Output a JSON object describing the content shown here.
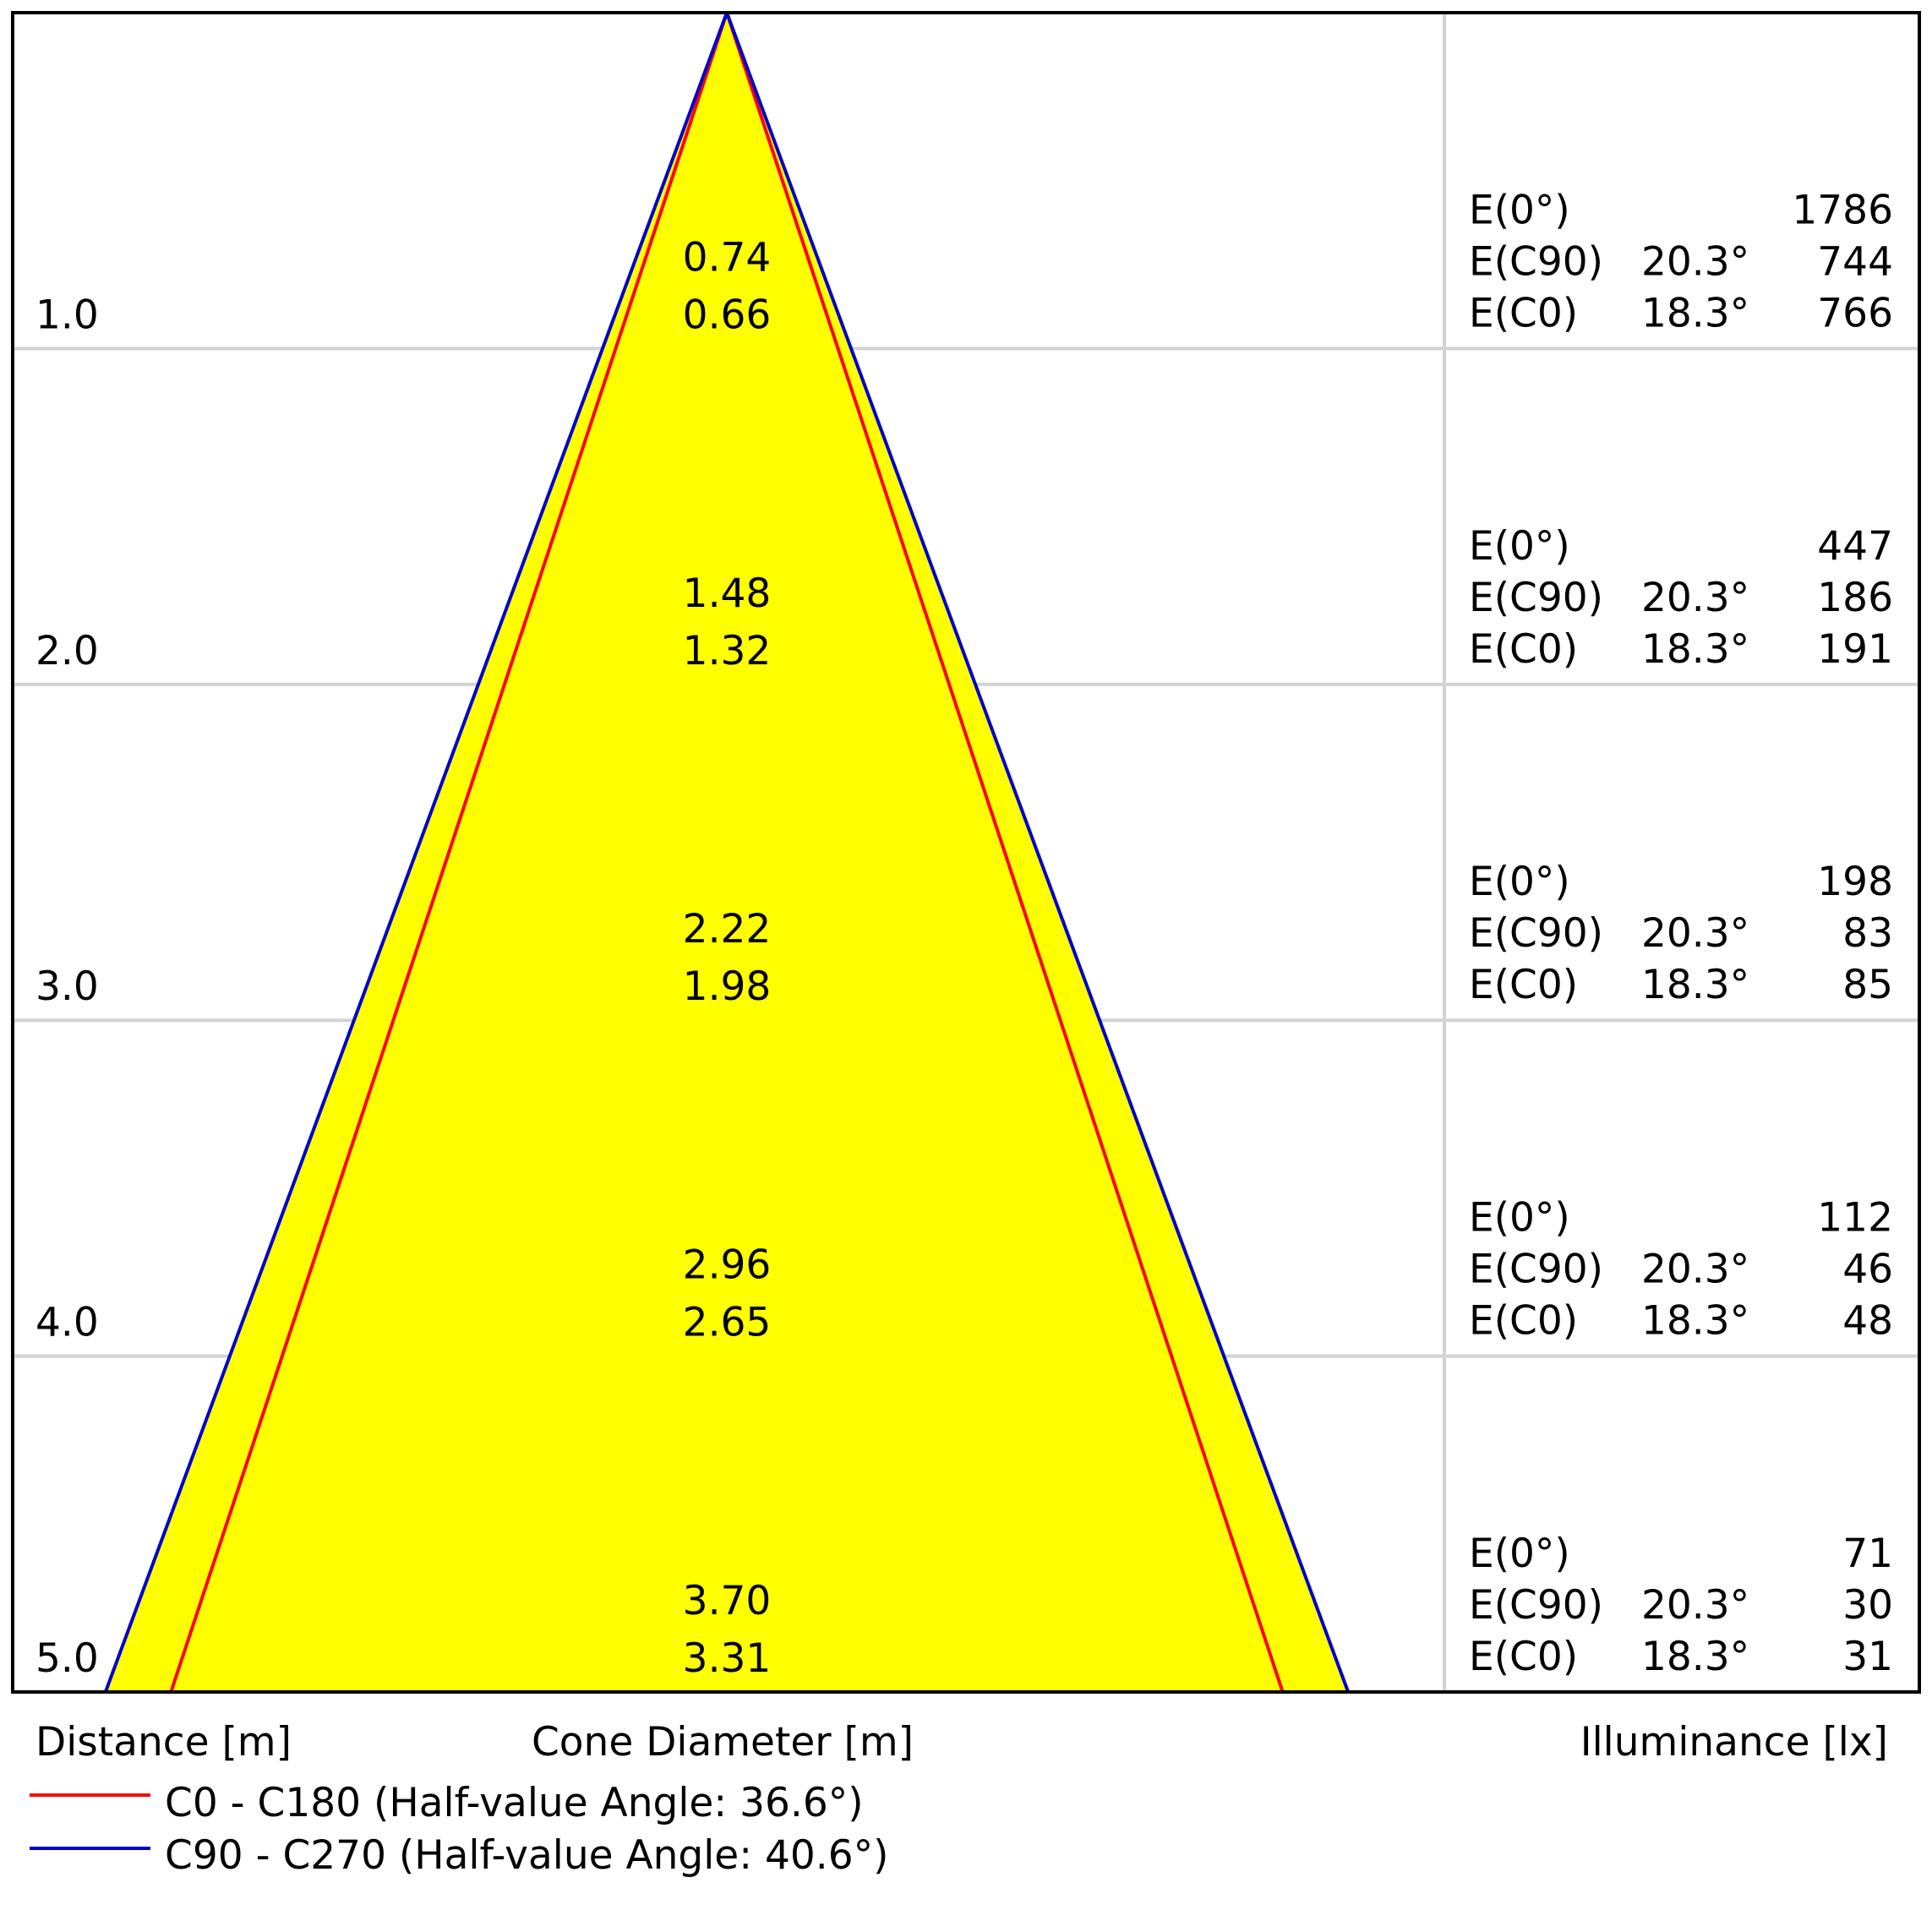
{
  "chart_data": {
    "type": "cone-diagram",
    "xlabel": "Distance [m]",
    "center_label": "Cone Diameter [m]",
    "right_label": "Illuminance [lx]",
    "distances": [
      "1.0",
      "2.0",
      "3.0",
      "4.0",
      "5.0"
    ],
    "distance_values": [
      1,
      2,
      3,
      4,
      5
    ],
    "diameters_c90": [
      "0.74",
      "1.48",
      "2.22",
      "2.96",
      "3.70"
    ],
    "diameters_c0": [
      "0.66",
      "1.32",
      "1.98",
      "2.65",
      "3.31"
    ],
    "diameter_values_c90": [
      0.74,
      1.48,
      2.22,
      2.96,
      3.7
    ],
    "diameter_values_c0": [
      0.66,
      1.32,
      1.98,
      2.65,
      3.31
    ],
    "illuminance_rows": [
      {
        "e0_label": "E(0°)",
        "e0": "1786",
        "ec90_label": "E(C90)",
        "ec90_angle": "20.3°",
        "ec90": "744",
        "ec0_label": "E(C0)",
        "ec0_angle": "18.3°",
        "ec0": "766"
      },
      {
        "e0_label": "E(0°)",
        "e0": "447",
        "ec90_label": "E(C90)",
        "ec90_angle": "20.3°",
        "ec90": "186",
        "ec0_label": "E(C0)",
        "ec0_angle": "18.3°",
        "ec0": "191"
      },
      {
        "e0_label": "E(0°)",
        "e0": "198",
        "ec90_label": "E(C90)",
        "ec90_angle": "20.3°",
        "ec90": "83",
        "ec0_label": "E(C0)",
        "ec0_angle": "18.3°",
        "ec0": "85"
      },
      {
        "e0_label": "E(0°)",
        "e0": "112",
        "ec90_label": "E(C90)",
        "ec90_angle": "20.3°",
        "ec90": "46",
        "ec0_label": "E(C0)",
        "ec0_angle": "18.3°",
        "ec0": "48"
      },
      {
        "e0_label": "E(0°)",
        "e0": "71",
        "ec90_label": "E(C90)",
        "ec90_angle": "20.3°",
        "ec90": "30",
        "ec0_label": "E(C0)",
        "ec0_angle": "18.3°",
        "ec0": "31"
      }
    ],
    "legend": [
      {
        "label": "C0 - C180 (Half-value Angle: 36.6°)",
        "color": "#ff0000"
      },
      {
        "label": "C90 - C270 (Half-value Angle: 40.6°)",
        "color": "#0000cc"
      }
    ],
    "fill_color": "#ffff00",
    "grid": true
  }
}
